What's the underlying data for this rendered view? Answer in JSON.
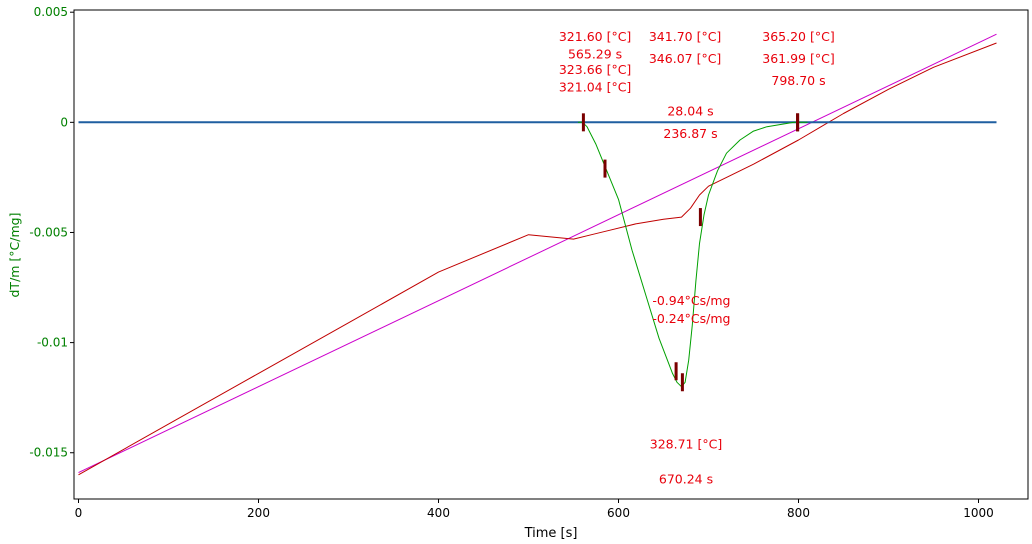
{
  "chart_data": {
    "type": "line",
    "xlabel": "Time [s]",
    "ylabel": "dT/m  [°C/mg]",
    "xlim": [
      -5,
      1055
    ],
    "ylim": [
      -0.0171,
      0.0051
    ],
    "x_ticks": [
      0,
      200,
      400,
      600,
      800,
      1000
    ],
    "y_ticks": [
      0.005,
      0,
      -0.005,
      -0.01,
      -0.015
    ],
    "y_tick_labels": [
      "0.005",
      "0",
      "-0.005",
      "-0.01",
      "-0.015"
    ],
    "grid": false,
    "colors": {
      "baseline": "#1f5fa0",
      "derivative": "#00a000",
      "sample": "#c00000",
      "reference": "#cc00cc",
      "marker": "#7a0000",
      "annotation": "#e8000b",
      "y_axis_text": "#008000"
    },
    "series": [
      {
        "key": "baseline",
        "x": [
          0,
          1020
        ],
        "y": [
          0,
          0
        ]
      },
      {
        "key": "derivative",
        "x": [
          555,
          560,
          565,
          575,
          585,
          600,
          615,
          630,
          645,
          660,
          665,
          670,
          674,
          678,
          682,
          686,
          690,
          695,
          700,
          710,
          720,
          735,
          750,
          765,
          780,
          795,
          800,
          810
        ],
        "y": [
          0,
          0,
          -0.0002,
          -0.001,
          -0.002,
          -0.0035,
          -0.0058,
          -0.0078,
          -0.0098,
          -0.0114,
          -0.0118,
          -0.012,
          -0.0118,
          -0.0108,
          -0.0092,
          -0.0072,
          -0.0055,
          -0.0042,
          -0.0033,
          -0.0022,
          -0.0014,
          -0.0008,
          -0.0004,
          -0.0002,
          -0.0001,
          0,
          0,
          0
        ]
      },
      {
        "key": "sample",
        "x": [
          0,
          100,
          200,
          300,
          400,
          500,
          550,
          570,
          590,
          620,
          650,
          670,
          680,
          690,
          700,
          720,
          750,
          800,
          850,
          900,
          950,
          1020
        ],
        "y": [
          -0.016,
          -0.0137,
          -0.0114,
          -0.0091,
          -0.0068,
          -0.0051,
          -0.0053,
          -0.0051,
          -0.0049,
          -0.0046,
          -0.0044,
          -0.0043,
          -0.0039,
          -0.0033,
          -0.0029,
          -0.0025,
          -0.0019,
          -0.0008,
          0.0004,
          0.0015,
          0.0025,
          0.0036
        ]
      },
      {
        "key": "reference",
        "x": [
          0,
          1020
        ],
        "y": [
          -0.0159,
          0.004
        ]
      }
    ],
    "markers": [
      {
        "x": 561,
        "y": 0
      },
      {
        "x": 585,
        "y": -0.0021
      },
      {
        "x": 664,
        "y": -0.0113
      },
      {
        "x": 671,
        "y": -0.0118
      },
      {
        "x": 691,
        "y": -0.0043
      },
      {
        "x": 799,
        "y": 0
      },
      {
        "x": 799,
        "y": 0
      }
    ],
    "annotations": [
      {
        "text": "321.60 [°C]",
        "x": 574,
        "y": 0.0037
      },
      {
        "text": "565.29 s",
        "x": 574,
        "y": 0.0029
      },
      {
        "text": "323.66 [°C]",
        "x": 574,
        "y": 0.0022
      },
      {
        "text": "321.04 [°C]",
        "x": 574,
        "y": 0.0014
      },
      {
        "text": "341.70 [°C]",
        "x": 674,
        "y": 0.0037
      },
      {
        "text": "346.07 [°C]",
        "x": 674,
        "y": 0.0027
      },
      {
        "text": "365.20 [°C]",
        "x": 800,
        "y": 0.0037
      },
      {
        "text": "361.99 [°C]",
        "x": 800,
        "y": 0.0027
      },
      {
        "text": "798.70 s",
        "x": 800,
        "y": 0.0017
      },
      {
        "text": "28.04 s",
        "x": 680,
        "y": 0.0003
      },
      {
        "text": "236.87 s",
        "x": 680,
        "y": -0.0007
      },
      {
        "text": "-0.94°Cs/mg",
        "x": 681,
        "y": -0.0083
      },
      {
        "text": "-0.24°Cs/mg",
        "x": 681,
        "y": -0.0091
      },
      {
        "text": "328.71 [°C]",
        "x": 675,
        "y": -0.0148
      },
      {
        "text": "670.24 s",
        "x": 675,
        "y": -0.0164
      }
    ]
  }
}
